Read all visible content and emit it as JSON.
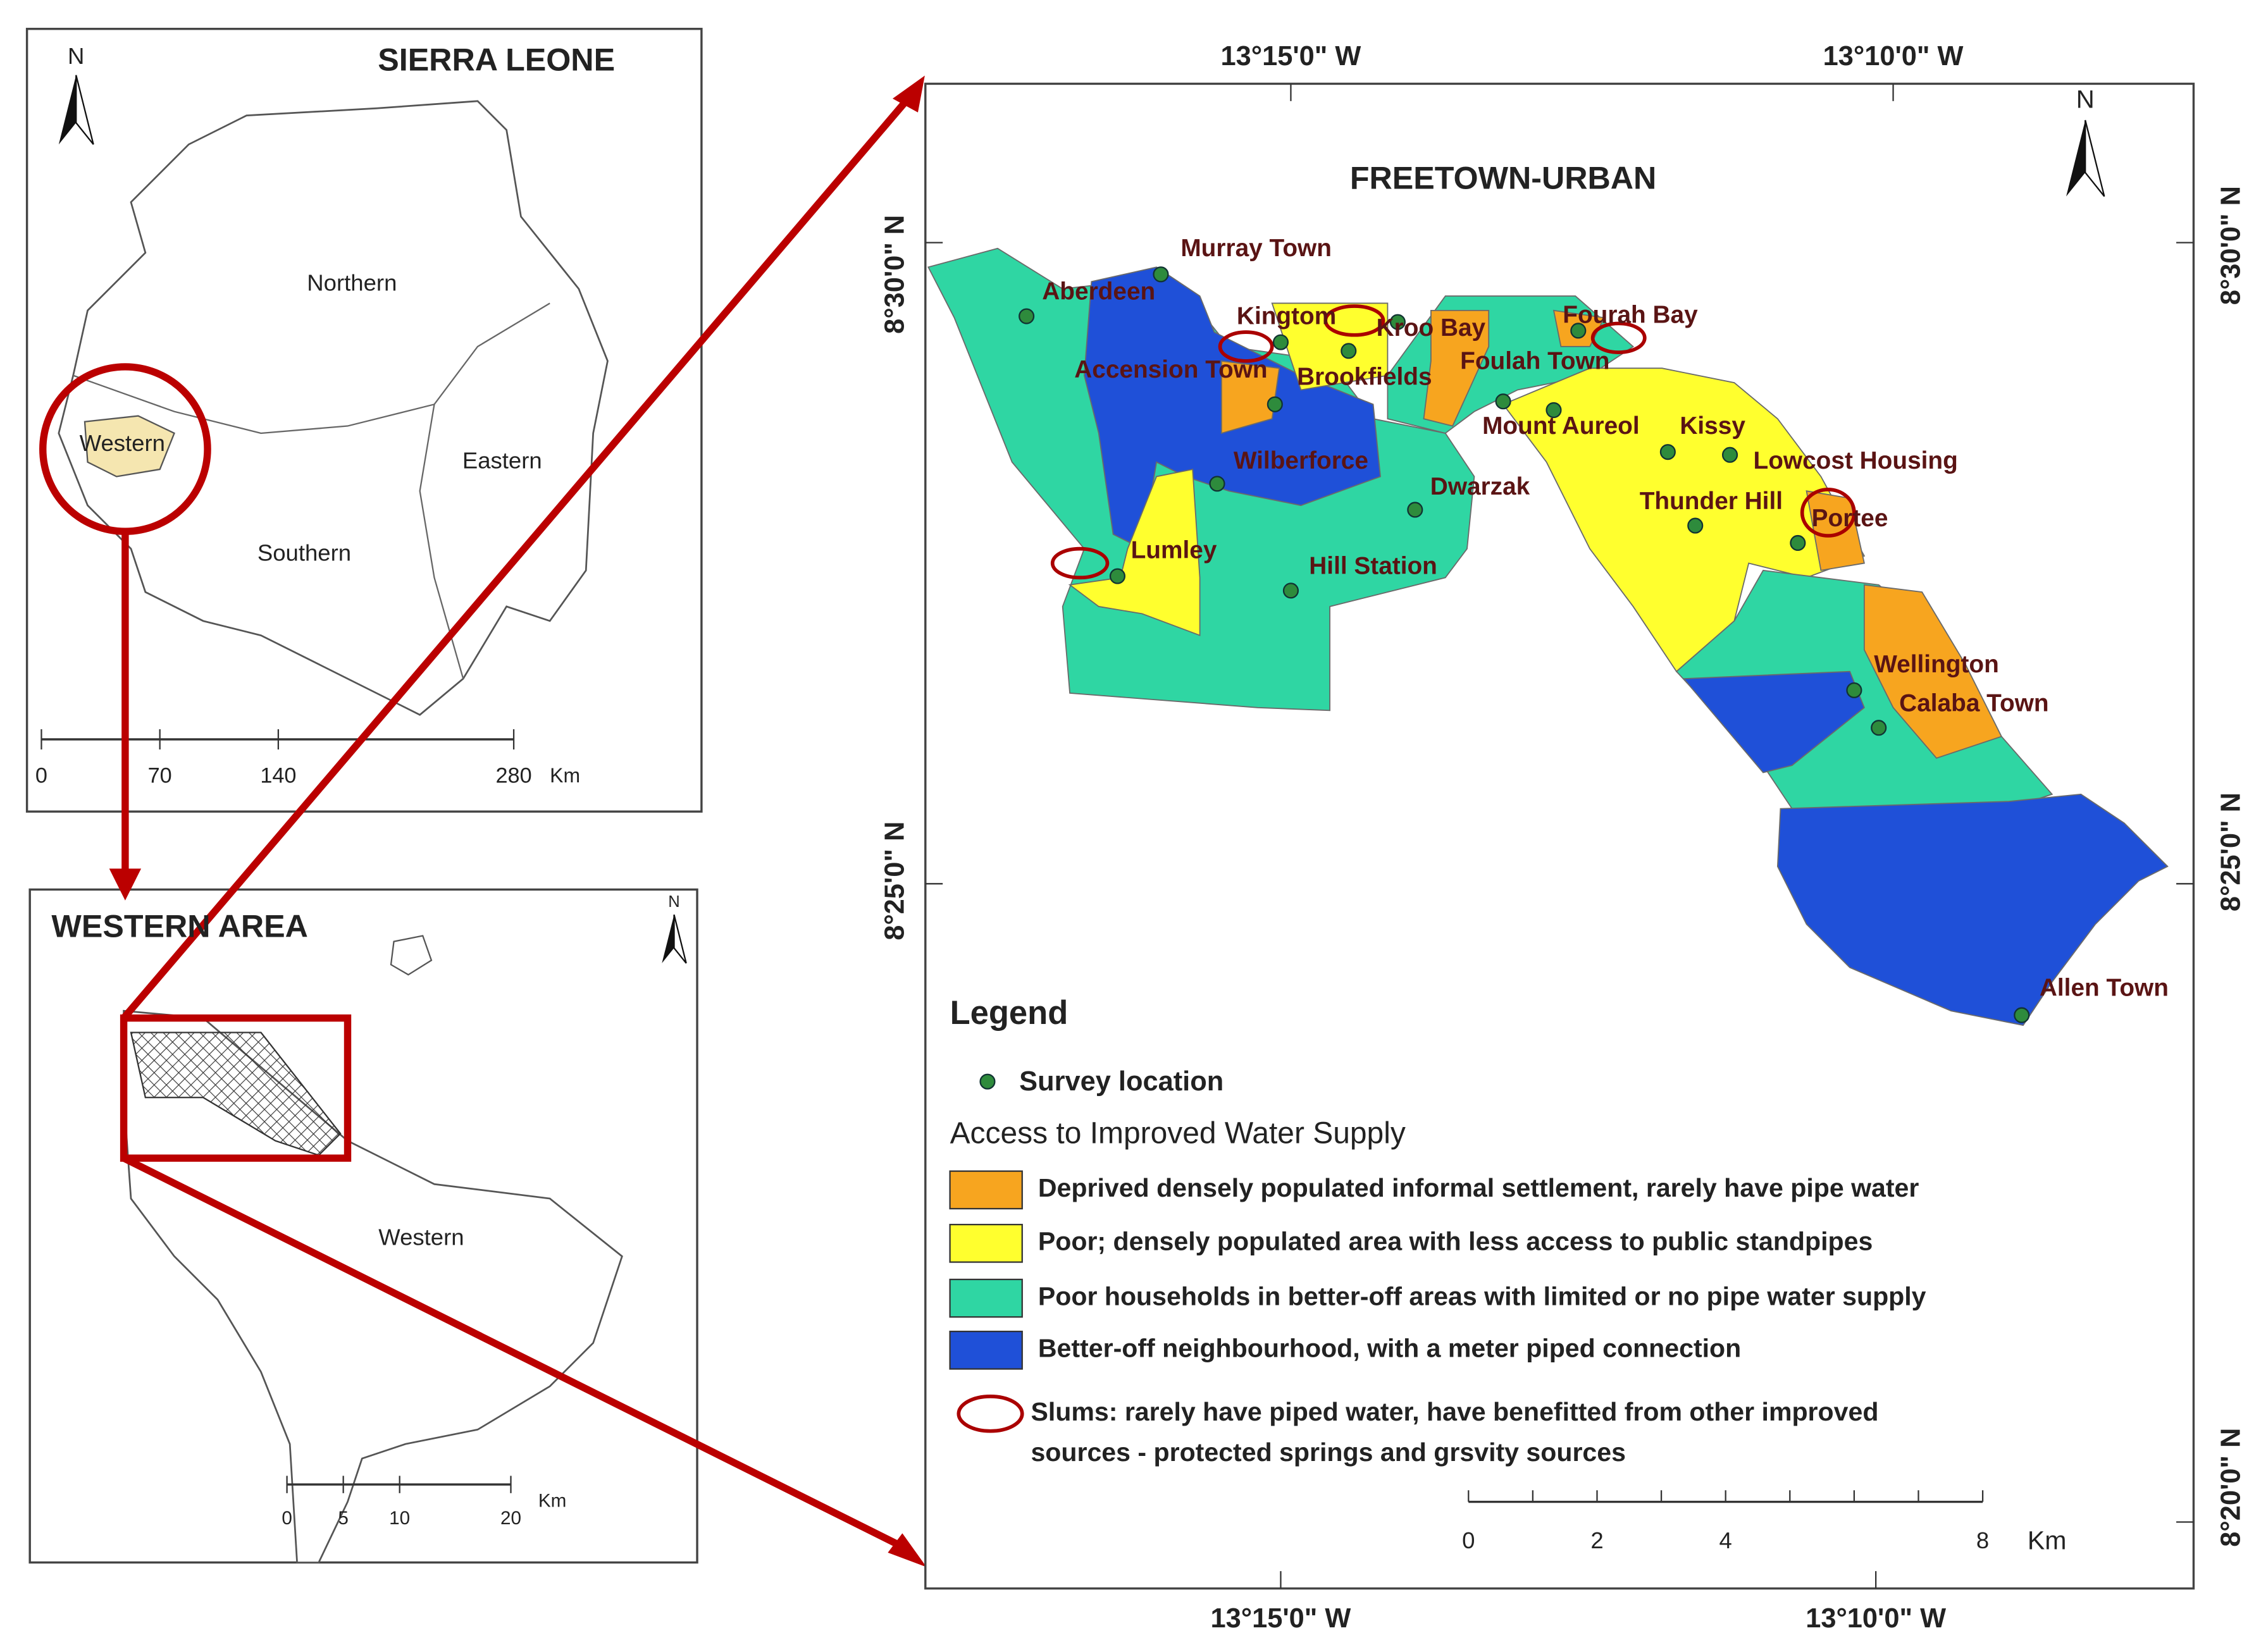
{
  "inset_country": {
    "title": "SIERRA LEONE",
    "north": "N",
    "regions": [
      "Northern",
      "Western",
      "Eastern",
      "Southern"
    ],
    "scale": [
      "0",
      "70",
      "140",
      "280"
    ],
    "scale_unit": "Km"
  },
  "inset_western": {
    "title": "WESTERN AREA",
    "north": "N",
    "region": "Western",
    "scale": [
      "0",
      "5",
      "10",
      "20"
    ],
    "scale_unit": "Km"
  },
  "main_map": {
    "title": "FREETOWN-URBAN",
    "north": "N",
    "top_labels": [
      "13°15'0\" W",
      "13°10'0\" W"
    ],
    "bottom_labels": [
      "13°15'0\" W",
      "13°10'0\" W"
    ],
    "left_labels": [
      "8°30'0\" N",
      "8°25'0\" N"
    ],
    "right_labels": [
      "8°30'0\" N",
      "8°25'0\" N",
      "8°20'0\" N"
    ],
    "places": [
      "Murray Town",
      "Aberdeen",
      "Kingtom",
      "Kroo Bay",
      "Fourah Bay",
      "Accension Town",
      "Brookfields",
      "Foulah Town",
      "Mount Aureol",
      "Kissy",
      "Wilberforce",
      "Lowcost Housing",
      "Dwarzak",
      "Thunder Hill",
      "Portee",
      "Lumley",
      "Hill Station",
      "Wellington",
      "Calaba Town",
      "Allen Town"
    ],
    "scale": [
      "0",
      "2",
      "4",
      "8"
    ],
    "scale_unit": "Km"
  },
  "legend": {
    "title": "Legend",
    "survey": "Survey location",
    "subtitle": "Access to Improved Water Supply",
    "classes": [
      {
        "label": "Deprived densely populated informal settlement, rarely have pipe water",
        "color": "#f7a51f"
      },
      {
        "label": "Poor; densely populated area with less access to public standpipes",
        "color": "#ffff2e"
      },
      {
        "label": "Poor households in better-off areas with limited or no pipe water supply",
        "color": "#2fd6a3"
      },
      {
        "label": "Better-off neighbourhood, with a meter piped connection",
        "color": "#1f50d8"
      }
    ],
    "slums": [
      "Slums: rarely have piped water, have benefitted from other improved",
      "sources - protected springs and grsvity sources"
    ]
  }
}
